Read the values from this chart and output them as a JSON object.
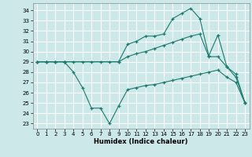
{
  "xlabel": "Humidex (Indice chaleur)",
  "bg_color": "#cce8e8",
  "grid_color": "#ffffff",
  "line_color": "#1a7a6e",
  "xlim": [
    -0.5,
    23.5
  ],
  "ylim": [
    22.5,
    34.7
  ],
  "yticks": [
    23,
    24,
    25,
    26,
    27,
    28,
    29,
    30,
    31,
    32,
    33,
    34
  ],
  "xticks": [
    0,
    1,
    2,
    3,
    4,
    5,
    6,
    7,
    8,
    9,
    10,
    11,
    12,
    13,
    14,
    15,
    16,
    17,
    18,
    19,
    20,
    21,
    22,
    23
  ],
  "series1": {
    "x": [
      0,
      1,
      2,
      3,
      4,
      5,
      6,
      7,
      8,
      9,
      10,
      11,
      12,
      13,
      14,
      15,
      16,
      17,
      18,
      19,
      20,
      21,
      22,
      23
    ],
    "y": [
      29,
      29,
      29,
      29,
      28,
      26.5,
      24.5,
      24.5,
      23,
      24.7,
      26.3,
      26.5,
      26.7,
      26.8,
      27.0,
      27.2,
      27.4,
      27.6,
      27.8,
      28.0,
      28.2,
      27.5,
      27.0,
      25
    ]
  },
  "series2": {
    "x": [
      0,
      1,
      2,
      3,
      4,
      5,
      6,
      7,
      8,
      9,
      10,
      11,
      12,
      13,
      14,
      15,
      16,
      17,
      18,
      19,
      20,
      21,
      22,
      23
    ],
    "y": [
      29,
      29,
      29,
      29,
      29,
      29,
      29,
      29,
      29,
      29,
      29.5,
      29.8,
      30.0,
      30.3,
      30.6,
      30.9,
      31.2,
      31.5,
      31.7,
      29.5,
      29.5,
      28.5,
      27.5,
      25.0
    ]
  },
  "series3": {
    "x": [
      0,
      1,
      2,
      3,
      9,
      10,
      11,
      12,
      13,
      14,
      15,
      16,
      17,
      18,
      19,
      20,
      21,
      22,
      23
    ],
    "y": [
      29,
      29,
      29,
      29,
      29,
      30.7,
      31.0,
      31.5,
      31.5,
      31.7,
      33.2,
      33.7,
      34.2,
      33.2,
      29.6,
      31.6,
      28.5,
      27.8,
      25.0
    ]
  }
}
